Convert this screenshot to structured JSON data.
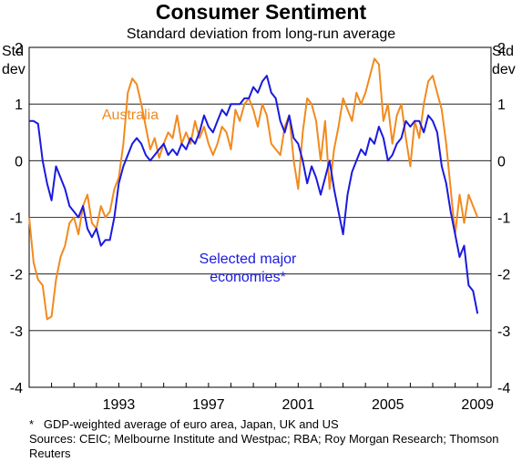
{
  "chart_data": {
    "type": "line",
    "title": "Consumer Sentiment",
    "subtitle": "Standard deviation from long-run average",
    "ylabel_left": "Std dev",
    "ylabel_right": "Std dev",
    "ylim": [
      -4,
      2
    ],
    "yticks": [
      2,
      1,
      0,
      -1,
      -2,
      -3,
      -4
    ],
    "xlim": [
      1989.0,
      2009.6
    ],
    "xticks": [
      1993,
      1997,
      2001,
      2005,
      2009
    ],
    "grid": true,
    "series": [
      {
        "name": "Australia",
        "color": "#f28a1e",
        "label_position": "above-line",
        "x": [
          1989.0,
          1989.2,
          1989.4,
          1989.6,
          1989.8,
          1990.0,
          1990.2,
          1990.4,
          1990.6,
          1990.8,
          1991.0,
          1991.2,
          1991.4,
          1991.6,
          1991.8,
          1992.0,
          1992.2,
          1992.4,
          1992.6,
          1992.8,
          1993.0,
          1993.2,
          1993.4,
          1993.6,
          1993.8,
          1994.0,
          1994.2,
          1994.4,
          1994.6,
          1994.8,
          1995.0,
          1995.2,
          1995.4,
          1995.6,
          1995.8,
          1996.0,
          1996.2,
          1996.4,
          1996.6,
          1996.8,
          1997.0,
          1997.2,
          1997.4,
          1997.6,
          1997.8,
          1998.0,
          1998.2,
          1998.4,
          1998.6,
          1998.8,
          1999.0,
          1999.2,
          1999.4,
          1999.6,
          1999.8,
          2000.0,
          2000.2,
          2000.4,
          2000.6,
          2000.8,
          2001.0,
          2001.2,
          2001.4,
          2001.6,
          2001.8,
          2002.0,
          2002.2,
          2002.4,
          2002.6,
          2002.8,
          2003.0,
          2003.2,
          2003.4,
          2003.6,
          2003.8,
          2004.0,
          2004.2,
          2004.4,
          2004.6,
          2004.8,
          2005.0,
          2005.2,
          2005.4,
          2005.6,
          2005.8,
          2006.0,
          2006.2,
          2006.4,
          2006.6,
          2006.8,
          2007.0,
          2007.2,
          2007.4,
          2007.6,
          2007.8,
          2008.0,
          2008.2,
          2008.4,
          2008.6,
          2008.8,
          2009.0
        ],
        "y": [
          -1.0,
          -1.8,
          -2.1,
          -2.2,
          -2.8,
          -2.75,
          -2.1,
          -1.7,
          -1.5,
          -1.1,
          -1.0,
          -1.3,
          -0.8,
          -0.6,
          -1.1,
          -1.2,
          -0.8,
          -1.0,
          -0.9,
          -0.5,
          -0.3,
          0.3,
          1.2,
          1.45,
          1.35,
          1.0,
          0.6,
          0.2,
          0.4,
          0.05,
          0.3,
          0.5,
          0.4,
          0.8,
          0.3,
          0.5,
          0.3,
          0.7,
          0.4,
          0.6,
          0.3,
          0.1,
          0.3,
          0.6,
          0.5,
          0.2,
          0.9,
          0.7,
          1.0,
          1.1,
          0.9,
          0.6,
          1.0,
          0.8,
          0.3,
          0.2,
          0.1,
          0.6,
          0.8,
          0.0,
          -0.5,
          0.5,
          1.1,
          1.0,
          0.7,
          0.0,
          0.7,
          -0.5,
          0.2,
          0.6,
          1.1,
          0.9,
          0.7,
          1.2,
          1.0,
          1.2,
          1.5,
          1.8,
          1.7,
          0.7,
          1.0,
          0.3,
          0.8,
          1.0,
          0.4,
          -0.1,
          0.7,
          0.4,
          1.0,
          1.4,
          1.5,
          1.2,
          0.9,
          0.3,
          -0.5,
          -1.3,
          -0.6,
          -1.1,
          -0.6,
          -0.8,
          -1.0
        ]
      },
      {
        "name": "Selected major economies*",
        "color": "#1a1adf",
        "label_position": "below-line",
        "x": [
          1989.0,
          1989.2,
          1989.4,
          1989.6,
          1989.8,
          1990.0,
          1990.2,
          1990.4,
          1990.6,
          1990.8,
          1991.0,
          1991.2,
          1991.4,
          1991.6,
          1991.8,
          1992.0,
          1992.2,
          1992.4,
          1992.6,
          1992.8,
          1993.0,
          1993.2,
          1993.4,
          1993.6,
          1993.8,
          1994.0,
          1994.2,
          1994.4,
          1994.6,
          1994.8,
          1995.0,
          1995.2,
          1995.4,
          1995.6,
          1995.8,
          1996.0,
          1996.2,
          1996.4,
          1996.6,
          1996.8,
          1997.0,
          1997.2,
          1997.4,
          1997.6,
          1997.8,
          1998.0,
          1998.2,
          1998.4,
          1998.6,
          1998.8,
          1999.0,
          1999.2,
          1999.4,
          1999.6,
          1999.8,
          2000.0,
          2000.2,
          2000.4,
          2000.6,
          2000.8,
          2001.0,
          2001.2,
          2001.4,
          2001.6,
          2001.8,
          2002.0,
          2002.2,
          2002.4,
          2002.6,
          2002.8,
          2003.0,
          2003.2,
          2003.4,
          2003.6,
          2003.8,
          2004.0,
          2004.2,
          2004.4,
          2004.6,
          2004.8,
          2005.0,
          2005.2,
          2005.4,
          2005.6,
          2005.8,
          2006.0,
          2006.2,
          2006.4,
          2006.6,
          2006.8,
          2007.0,
          2007.2,
          2007.4,
          2007.6,
          2007.8,
          2008.0,
          2008.2,
          2008.4,
          2008.6,
          2008.8,
          2009.0
        ],
        "y": [
          0.7,
          0.7,
          0.65,
          0.0,
          -0.4,
          -0.7,
          -0.1,
          -0.3,
          -0.5,
          -0.8,
          -0.9,
          -1.0,
          -0.8,
          -1.2,
          -1.35,
          -1.2,
          -1.5,
          -1.4,
          -1.4,
          -1.0,
          -0.4,
          -0.1,
          0.1,
          0.3,
          0.4,
          0.3,
          0.1,
          0.0,
          0.1,
          0.2,
          0.3,
          0.1,
          0.2,
          0.1,
          0.3,
          0.2,
          0.4,
          0.3,
          0.5,
          0.8,
          0.6,
          0.5,
          0.7,
          0.9,
          0.8,
          1.0,
          1.0,
          1.0,
          1.1,
          1.1,
          1.3,
          1.2,
          1.4,
          1.5,
          1.2,
          1.1,
          0.7,
          0.5,
          0.8,
          0.4,
          0.3,
          0.0,
          -0.4,
          -0.1,
          -0.3,
          -0.6,
          -0.3,
          0.0,
          -0.5,
          -0.9,
          -1.3,
          -0.6,
          -0.2,
          0.0,
          0.2,
          0.1,
          0.4,
          0.3,
          0.6,
          0.4,
          0.0,
          0.1,
          0.3,
          0.4,
          0.7,
          0.6,
          0.7,
          0.7,
          0.5,
          0.8,
          0.7,
          0.5,
          -0.1,
          -0.4,
          -0.9,
          -1.3,
          -1.7,
          -1.5,
          -2.2,
          -2.3,
          -2.7
        ]
      }
    ],
    "series_labels": [
      "Australia",
      "Selected major",
      "economies*"
    ]
  },
  "notes": {
    "footnote_marker": "*",
    "footnote": "GDP-weighted average of euro area, Japan, UK and US",
    "sources_label": "Sources:",
    "sources": "CEIC; Melbourne Institute and Westpac; RBA; Roy Morgan Research; Thomson Reuters"
  },
  "axis_units": {
    "left_line1": "Std",
    "left_line2": "dev",
    "right_line1": "Std",
    "right_line2": "dev"
  }
}
